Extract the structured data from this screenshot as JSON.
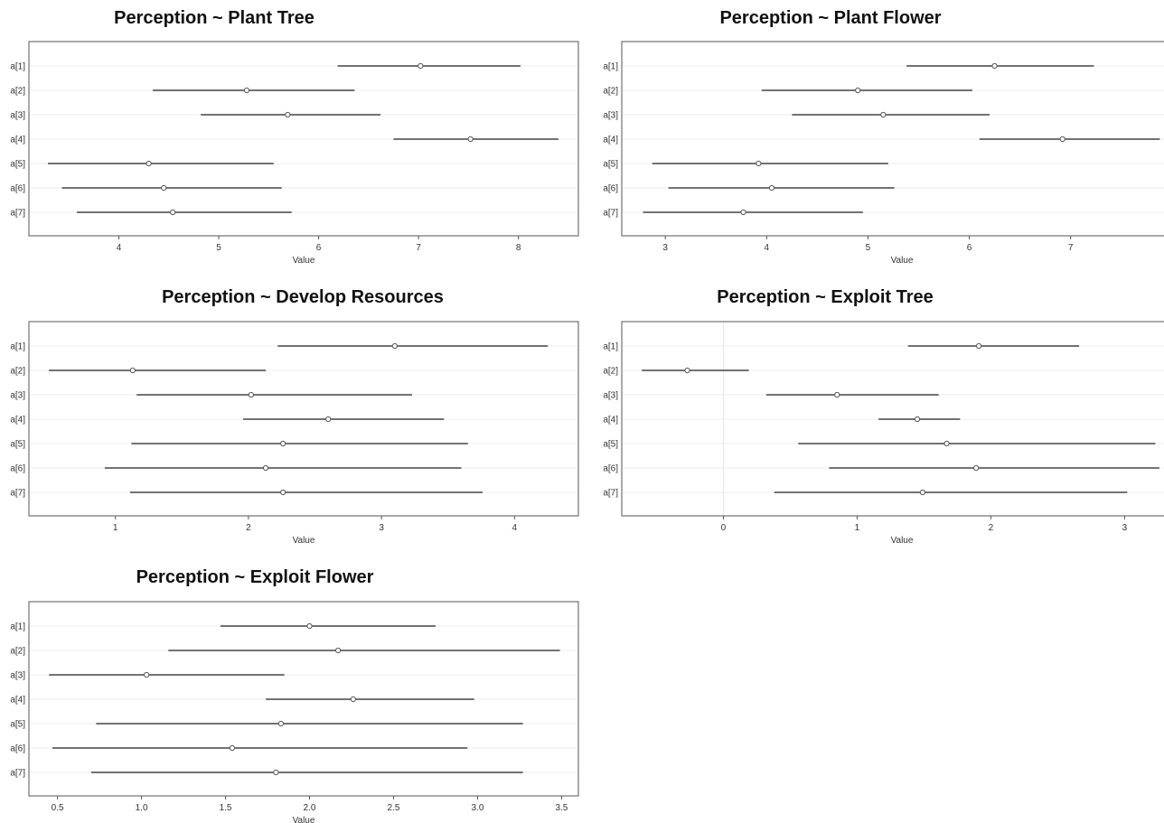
{
  "chart_data": [
    {
      "type": "forest",
      "title": "Perception ~ Plant Tree",
      "xlabel": "Value",
      "categories": [
        "a[1]",
        "a[2]",
        "a[3]",
        "a[4]",
        "a[5]",
        "a[6]",
        "a[7]"
      ],
      "xlim": [
        3.1,
        8.6
      ],
      "xticks": [
        4,
        5,
        6,
        7,
        8
      ],
      "series": [
        {
          "mean": [
            7.02,
            5.28,
            5.69,
            7.52,
            4.3,
            4.45,
            4.54
          ],
          "lower": [
            6.19,
            4.34,
            4.82,
            6.75,
            3.29,
            3.43,
            3.58
          ],
          "upper": [
            8.02,
            6.36,
            6.62,
            8.4,
            5.55,
            5.63,
            5.73
          ]
        }
      ]
    },
    {
      "type": "forest",
      "title": "Perception ~ Plant Flower",
      "xlabel": "Value",
      "categories": [
        "a[1]",
        "a[2]",
        "a[3]",
        "a[4]",
        "a[5]",
        "a[6]",
        "a[7]"
      ],
      "xlim": [
        2.57,
        8.1
      ],
      "xticks": [
        3,
        4,
        5,
        6,
        7,
        8
      ],
      "series": [
        {
          "mean": [
            6.25,
            4.9,
            5.15,
            6.92,
            3.92,
            4.05,
            3.77
          ],
          "lower": [
            5.38,
            3.95,
            4.25,
            6.1,
            2.87,
            3.03,
            2.78
          ],
          "upper": [
            7.23,
            6.03,
            6.2,
            7.88,
            5.2,
            5.26,
            4.95
          ]
        }
      ]
    },
    {
      "type": "forest",
      "title": "Perception ~ Develop Resources",
      "xlabel": "Value",
      "categories": [
        "a[1]",
        "a[2]",
        "a[3]",
        "a[4]",
        "a[5]",
        "a[6]",
        "a[7]"
      ],
      "xlim": [
        0.35,
        4.48
      ],
      "xticks": [
        1,
        2,
        3,
        4
      ],
      "series": [
        {
          "mean": [
            3.1,
            1.13,
            2.02,
            2.6,
            2.26,
            2.13,
            2.26
          ],
          "lower": [
            2.22,
            0.5,
            1.16,
            1.96,
            1.12,
            0.92,
            1.11
          ],
          "upper": [
            4.25,
            2.13,
            3.23,
            3.47,
            3.65,
            3.6,
            3.76
          ]
        }
      ]
    },
    {
      "type": "forest",
      "title": "Perception ~ Exploit Tree",
      "xlabel": "Value",
      "categories": [
        "a[1]",
        "a[2]",
        "a[3]",
        "a[4]",
        "a[5]",
        "a[6]",
        "a[7]"
      ],
      "xlim": [
        -0.76,
        3.43
      ],
      "xticks": [
        0,
        1,
        2,
        3
      ],
      "series": [
        {
          "mean": [
            1.91,
            -0.27,
            0.85,
            1.45,
            1.67,
            1.89,
            1.49
          ],
          "lower": [
            1.38,
            -0.61,
            0.32,
            1.16,
            0.56,
            0.79,
            0.38
          ],
          "upper": [
            2.66,
            0.19,
            1.61,
            1.77,
            3.23,
            3.26,
            3.02
          ]
        }
      ]
    },
    {
      "type": "forest",
      "title": "Perception ~ Exploit Flower",
      "xlabel": "Value",
      "categories": [
        "a[1]",
        "a[2]",
        "a[3]",
        "a[4]",
        "a[5]",
        "a[6]",
        "a[7]"
      ],
      "xlim": [
        0.33,
        3.6
      ],
      "xticks": [
        0.5,
        1.0,
        1.5,
        2.0,
        2.5,
        3.0,
        3.5
      ],
      "xtick_labels": [
        "0.5",
        "1.0",
        "1.5",
        "2.0",
        "2.5",
        "3.0",
        "3.5"
      ],
      "series": [
        {
          "mean": [
            2.0,
            2.17,
            1.03,
            2.26,
            1.83,
            1.54,
            1.8
          ],
          "lower": [
            1.47,
            1.16,
            0.45,
            1.74,
            0.73,
            0.47,
            0.7
          ],
          "upper": [
            2.75,
            3.49,
            1.85,
            2.98,
            3.27,
            2.94,
            3.27
          ]
        }
      ]
    }
  ]
}
